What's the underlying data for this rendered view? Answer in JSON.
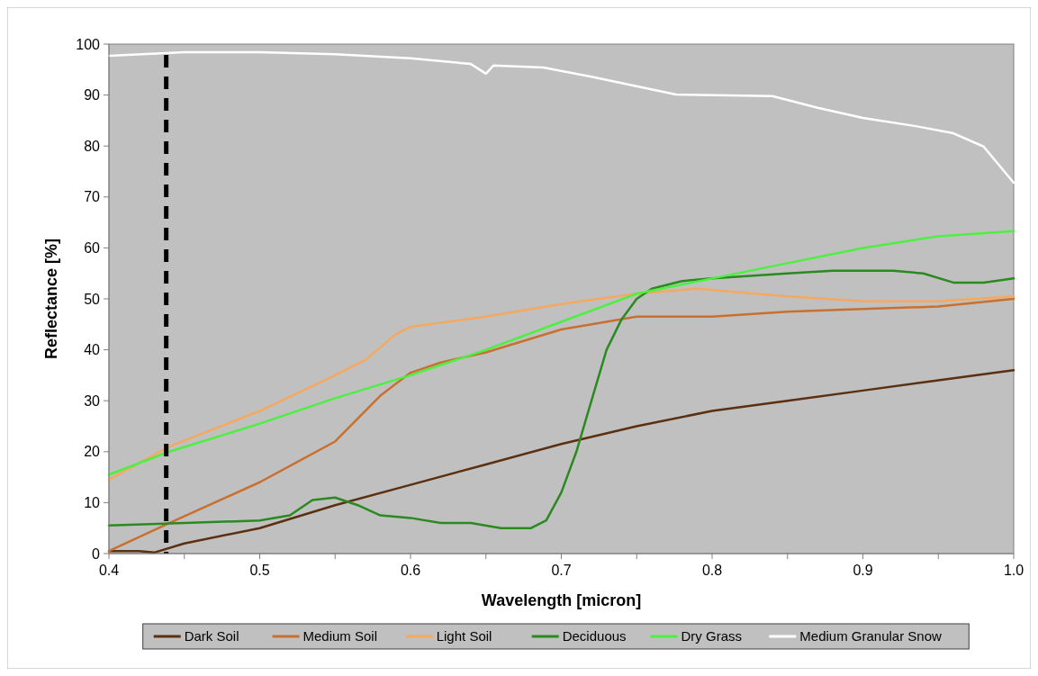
{
  "chart_data": {
    "type": "line",
    "xlabel": "Wavelength [micron]",
    "ylabel": "Reflectance [%]",
    "xlim": [
      0.4,
      1.0
    ],
    "xticks": [
      0.4,
      {
        "value": 0.45,
        "label": null
      },
      0.5,
      {
        "value": 0.55,
        "label": null
      },
      0.6,
      {
        "value": 0.65,
        "label": null
      },
      0.7,
      {
        "value": 0.75,
        "label": null
      },
      0.8,
      {
        "value": 0.85,
        "label": null
      },
      0.9,
      {
        "value": 0.95,
        "label": null
      },
      {
        "value": 1.0,
        "label": "1.0"
      }
    ],
    "ylim": [
      0,
      100
    ],
    "yticks": [
      0,
      10,
      20,
      30,
      40,
      50,
      60,
      70,
      80,
      90,
      100
    ],
    "grid": false,
    "legend": "bottom",
    "marker": "none",
    "line_style": "solid",
    "ref_lines": [
      {
        "axis": "x",
        "value": 0.438,
        "color": "#000000",
        "line_style": "dashed"
      }
    ],
    "series": [
      {
        "name": "Dark Soil",
        "color": "#5a3010",
        "x": [
          0.4,
          0.42,
          0.43,
          0.45,
          0.5,
          0.55,
          0.6,
          0.65,
          0.7,
          0.75,
          0.8,
          0.85,
          0.9,
          0.95,
          1.0
        ],
        "values": [
          0.5,
          0.5,
          0.2,
          2,
          5,
          9.5,
          13.5,
          17.5,
          21.5,
          25,
          28,
          30,
          32,
          34,
          36
        ]
      },
      {
        "name": "Medium Soil",
        "color": "#c87030",
        "x": [
          0.4,
          0.44,
          0.5,
          0.55,
          0.58,
          0.6,
          0.62,
          0.65,
          0.7,
          0.75,
          0.8,
          0.85,
          0.9,
          0.95,
          1.0
        ],
        "values": [
          0.5,
          6,
          14,
          22,
          31,
          35.5,
          37.5,
          39.5,
          44,
          46.5,
          46.5,
          47.5,
          48,
          48.5,
          50
        ]
      },
      {
        "name": "Light Soil",
        "color": "#f4a860",
        "x": [
          0.4,
          0.44,
          0.5,
          0.55,
          0.57,
          0.59,
          0.6,
          0.65,
          0.7,
          0.75,
          0.79,
          0.85,
          0.9,
          0.95,
          1.0
        ],
        "values": [
          14.5,
          21,
          28,
          35,
          38,
          43,
          44.5,
          46.5,
          49,
          51,
          52,
          50.5,
          49.5,
          49.5,
          50.5
        ]
      },
      {
        "name": "Deciduous",
        "color": "#2a8a20",
        "x": [
          0.4,
          0.45,
          0.5,
          0.52,
          0.535,
          0.55,
          0.565,
          0.58,
          0.6,
          0.62,
          0.64,
          0.66,
          0.68,
          0.69,
          0.7,
          0.71,
          0.72,
          0.73,
          0.74,
          0.75,
          0.76,
          0.78,
          0.8,
          0.85,
          0.88,
          0.92,
          0.94,
          0.96,
          0.98,
          1.0
        ],
        "values": [
          5.5,
          6,
          6.5,
          7.5,
          10.5,
          11,
          9.5,
          7.5,
          7,
          6,
          6,
          5,
          5,
          6.5,
          12,
          20,
          30,
          40,
          46,
          50,
          52,
          53.5,
          54,
          55,
          55.5,
          55.5,
          55,
          53.2,
          53.2,
          54
        ]
      },
      {
        "name": "Dry Grass",
        "color": "#4cf040",
        "x": [
          0.4,
          0.44,
          0.5,
          0.55,
          0.6,
          0.65,
          0.7,
          0.75,
          0.8,
          0.85,
          0.9,
          0.95,
          1.0
        ],
        "values": [
          15.5,
          20,
          25.5,
          30.5,
          35,
          40,
          45.5,
          51,
          54,
          57,
          60,
          62.3,
          63.3
        ]
      },
      {
        "name": "Medium Granular Snow",
        "color": "#ffffff",
        "x": [
          0.4,
          0.45,
          0.5,
          0.55,
          0.6,
          0.64,
          0.65,
          0.655,
          0.688,
          0.72,
          0.776,
          0.84,
          0.87,
          0.9,
          0.935,
          0.96,
          0.98,
          1.0
        ],
        "values": [
          97.7,
          98.4,
          98.4,
          98,
          97.2,
          96.1,
          94.2,
          95.8,
          95.4,
          93.6,
          90.1,
          89.8,
          87.5,
          85.5,
          83.9,
          82.5,
          79.9,
          72.8
        ]
      }
    ]
  }
}
